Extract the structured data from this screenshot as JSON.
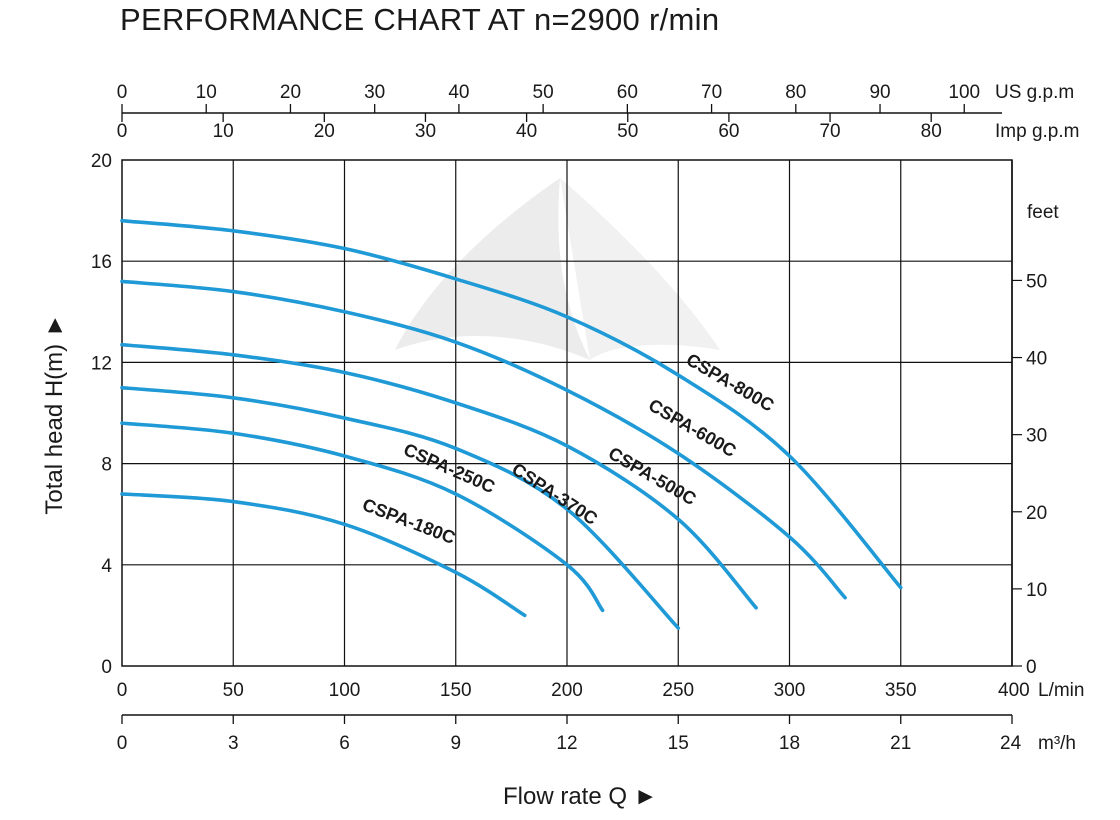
{
  "title": "PERFORMANCE CHART AT n=2900 r/min",
  "colors": {
    "curve": "#1f9ad6",
    "grid": "#111111",
    "watermark": "#ececec"
  },
  "chart_data": {
    "type": "line",
    "title": "PERFORMANCE CHART AT n=2900 r/min",
    "xlabel": "Flow rate  Q",
    "ylabel": "Total  head H(m)",
    "xlim": [
      0,
      400
    ],
    "ylim": [
      0,
      20
    ],
    "grid": true,
    "x_axes": {
      "us_gpm": {
        "unit": "US g.p.m",
        "ticks": [
          "0",
          "10",
          "20",
          "30",
          "40",
          "50",
          "60",
          "70",
          "80",
          "90",
          "100"
        ]
      },
      "imp_gpm": {
        "unit": "Imp g.p.m",
        "ticks": [
          "0",
          "10",
          "20",
          "30",
          "40",
          "50",
          "60",
          "70",
          "80"
        ]
      },
      "lmin": {
        "unit": "L/min",
        "ticks": [
          "0",
          "50",
          "100",
          "150",
          "200",
          "250",
          "300",
          "350",
          "400"
        ]
      },
      "m3h": {
        "unit": "m³/h",
        "ticks": [
          "0",
          "3",
          "6",
          "9",
          "12",
          "15",
          "18",
          "21",
          "24"
        ]
      }
    },
    "y_axes": {
      "left": {
        "unit": "m",
        "ticks": [
          "0",
          "4",
          "8",
          "12",
          "16",
          "20"
        ]
      },
      "right": {
        "unit": "feet",
        "ticks": [
          "0",
          "10",
          "20",
          "30",
          "40",
          "50"
        ]
      }
    },
    "series": [
      {
        "name": "CSPA-800C",
        "x": [
          0,
          50,
          100,
          150,
          200,
          250,
          300,
          350
        ],
        "y": [
          17.6,
          17.2,
          16.5,
          15.3,
          13.8,
          11.5,
          8.3,
          3.1
        ]
      },
      {
        "name": "CSPA-600C",
        "x": [
          0,
          50,
          100,
          150,
          200,
          250,
          300,
          325
        ],
        "y": [
          15.2,
          14.8,
          14.0,
          12.8,
          10.9,
          8.4,
          5.1,
          2.7
        ]
      },
      {
        "name": "CSPA-500C",
        "x": [
          0,
          50,
          100,
          150,
          200,
          250,
          285
        ],
        "y": [
          12.7,
          12.3,
          11.6,
          10.4,
          8.7,
          5.8,
          2.3
        ]
      },
      {
        "name": "CSPA-370C",
        "x": [
          0,
          50,
          100,
          150,
          200,
          250
        ],
        "y": [
          11.0,
          10.6,
          9.8,
          8.6,
          6.2,
          1.5
        ]
      },
      {
        "name": "CSPA-250C",
        "x": [
          0,
          50,
          100,
          150,
          200,
          216
        ],
        "y": [
          9.6,
          9.2,
          8.3,
          6.8,
          4.0,
          2.2
        ]
      },
      {
        "name": "CSPA-180C",
        "x": [
          0,
          50,
          100,
          150,
          181
        ],
        "y": [
          6.8,
          6.5,
          5.6,
          3.7,
          2.0
        ]
      }
    ]
  }
}
